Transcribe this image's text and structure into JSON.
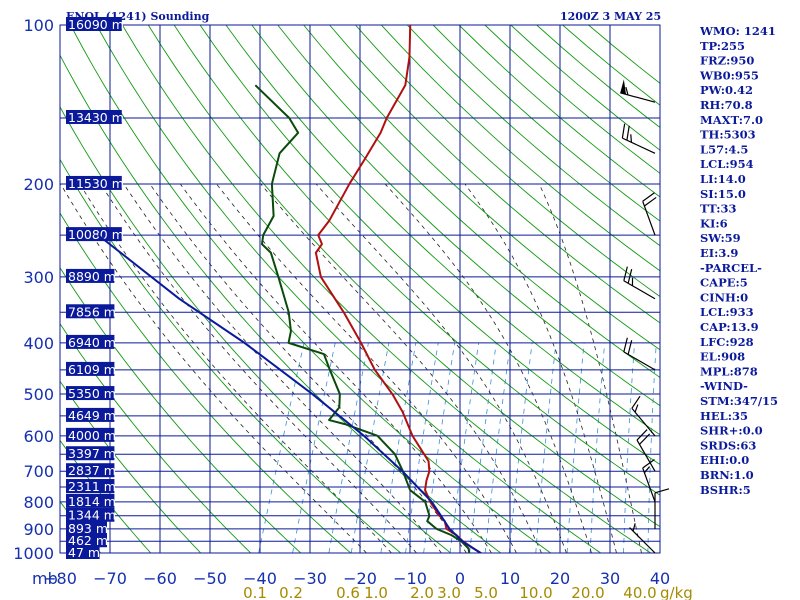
{
  "header": {
    "station_title": "ENOL (1241) Sounding",
    "valid_time": "1200Z  3 MAY 25"
  },
  "indices": [
    "WMO: 1241",
    "TP:255",
    "FRZ:950",
    "WB0:955",
    "PW:0.42",
    "RH:70.8",
    "MAXT:7.0",
    "TH:5303",
    "L57:4.5",
    "LCL:954",
    "LI:14.0",
    "SI:15.0",
    "TT:33",
    "KI:6",
    "SW:59",
    "EI:3.9",
    "-PARCEL-",
    "CAPE:5",
    "CINH:0",
    "LCL:933",
    "CAP:13.9",
    "LFC:928",
    "EL:908",
    "MPL:878",
    "-WIND-",
    "STM:347/15",
    "HEL:35",
    "SHR+:0.0",
    "SRDS:63",
    "EHI:0.0",
    "BRN:1.0",
    "BSHR:5"
  ],
  "colors": {
    "background": "#ffffff",
    "grid": "#0b1a9a",
    "dry_adiabat": "#139a13",
    "moist_adiabat": "#222222",
    "mixing_ratio": "#3a8fd8",
    "temperature": "#b01010",
    "dewpoint": "#0a4a0a",
    "parcel": "#0b1a9a",
    "labels": "#1530b0",
    "mixing_labels": "#a68a00",
    "wind_barbs": "#000000"
  },
  "chart_data": {
    "type": "skew-t",
    "pressure_unit": "mb",
    "ylim": [
      1000,
      100
    ],
    "xlim": [
      -80,
      0
    ],
    "pressure_ticks": [
      "100",
      "200",
      "300",
      "400",
      "500",
      "600",
      "700",
      "800",
      "900",
      "1000"
    ],
    "temperature_ticks": [
      "−80",
      "−70",
      "−60",
      "−50",
      "−40",
      "−30",
      "−20",
      "−10",
      "0",
      "10",
      "20",
      "30",
      "40"
    ],
    "height_labels": [
      {
        "p": 100,
        "label": "16090 m"
      },
      {
        "p": 150,
        "label": "13430 m"
      },
      {
        "p": 200,
        "label": "11530 m"
      },
      {
        "p": 250,
        "label": "10080 m"
      },
      {
        "p": 300,
        "label": "8890 m"
      },
      {
        "p": 350,
        "label": "7856 m"
      },
      {
        "p": 400,
        "label": "6940 m"
      },
      {
        "p": 450,
        "label": "6109 m"
      },
      {
        "p": 500,
        "label": "5350 m"
      },
      {
        "p": 550,
        "label": "4649 m"
      },
      {
        "p": 600,
        "label": "4000 m"
      },
      {
        "p": 650,
        "label": "3397 m"
      },
      {
        "p": 700,
        "label": "2837 m"
      },
      {
        "p": 750,
        "label": "2311 m"
      },
      {
        "p": 800,
        "label": "1814 m"
      },
      {
        "p": 850,
        "label": "1344 m"
      },
      {
        "p": 900,
        "label": "893 m"
      },
      {
        "p": 950,
        "label": "462 m"
      },
      {
        "p": 1000,
        "label": "47 m"
      }
    ],
    "mixing_ratio_labels": [
      "0.1",
      "0.2",
      "0.6",
      "1.0",
      "2.0",
      "3.0",
      "5.0",
      "10.0",
      "20.0",
      "40.0"
    ],
    "mixing_ratio_unit": "g/kg",
    "series": [
      {
        "id": "temperature",
        "points": [
          {
            "p": 1005,
            "t": 3.3
          },
          {
            "p": 980,
            "t": 1.0
          },
          {
            "p": 950,
            "t": -1.7
          },
          {
            "p": 925,
            "t": -3.5
          },
          {
            "p": 900,
            "t": -6.0
          },
          {
            "p": 870,
            "t": -7.0
          },
          {
            "p": 850,
            "t": -8.5
          },
          {
            "p": 800,
            "t": -11.5
          },
          {
            "p": 760,
            "t": -13.5
          },
          {
            "p": 730,
            "t": -14.0
          },
          {
            "p": 700,
            "t": -14.2
          },
          {
            "p": 670,
            "t": -15.2
          },
          {
            "p": 600,
            "t": -20.5
          },
          {
            "p": 540,
            "t": -24.5
          },
          {
            "p": 500,
            "t": -28.0
          },
          {
            "p": 450,
            "t": -33.5
          },
          {
            "p": 400,
            "t": -38.5
          },
          {
            "p": 350,
            "t": -44.5
          },
          {
            "p": 300,
            "t": -52.0
          },
          {
            "p": 270,
            "t": -55.0
          },
          {
            "p": 260,
            "t": -54.5
          },
          {
            "p": 250,
            "t": -56.0
          },
          {
            "p": 235,
            "t": -55.0
          },
          {
            "p": 200,
            "t": -54.0
          },
          {
            "p": 180,
            "t": -53.0
          },
          {
            "p": 160,
            "t": -52.0
          },
          {
            "p": 150,
            "t": -52.0
          },
          {
            "p": 130,
            "t": -51.0
          },
          {
            "p": 115,
            "t": -52.5
          },
          {
            "p": 100,
            "t": -55.0
          }
        ]
      },
      {
        "id": "dewpoint",
        "points": [
          {
            "p": 1005,
            "t": 0.7
          },
          {
            "p": 980,
            "t": 0.0
          },
          {
            "p": 950,
            "t": -2.0
          },
          {
            "p": 925,
            "t": -4.5
          },
          {
            "p": 900,
            "t": -8.0
          },
          {
            "p": 870,
            "t": -10.5
          },
          {
            "p": 850,
            "t": -10.5
          },
          {
            "p": 800,
            "t": -12.5
          },
          {
            "p": 760,
            "t": -16.5
          },
          {
            "p": 700,
            "t": -19.5
          },
          {
            "p": 650,
            "t": -22.5
          },
          {
            "p": 600,
            "t": -27.5
          },
          {
            "p": 570,
            "t": -35.0
          },
          {
            "p": 560,
            "t": -38.5
          },
          {
            "p": 530,
            "t": -37.5
          },
          {
            "p": 500,
            "t": -38.5
          },
          {
            "p": 450,
            "t": -42.5
          },
          {
            "p": 420,
            "t": -45.0
          },
          {
            "p": 400,
            "t": -53.0
          },
          {
            "p": 380,
            "t": -53.5
          },
          {
            "p": 350,
            "t": -55.5
          },
          {
            "p": 300,
            "t": -60.5
          },
          {
            "p": 270,
            "t": -64.0
          },
          {
            "p": 260,
            "t": -66.5
          },
          {
            "p": 250,
            "t": -67.0
          },
          {
            "p": 230,
            "t": -66.5
          },
          {
            "p": 200,
            "t": -69.5
          },
          {
            "p": 175,
            "t": -70.5
          },
          {
            "p": 160,
            "t": -68.5
          },
          {
            "p": 150,
            "t": -71.5
          },
          {
            "p": 130,
            "t": -81.0
          }
        ]
      },
      {
        "id": "parcel",
        "points": [
          {
            "p": 1005,
            "t": 3.3
          },
          {
            "p": 955,
            "t": -1.4
          },
          {
            "p": 900,
            "t": -5.4
          },
          {
            "p": 850,
            "t": -8.2
          },
          {
            "p": 800,
            "t": -11.2
          },
          {
            "p": 700,
            "t": -19.6
          },
          {
            "p": 600,
            "t": -30.2
          },
          {
            "p": 500,
            "t": -44.0
          },
          {
            "p": 400,
            "t": -61.8
          },
          {
            "p": 330,
            "t": -78.5
          },
          {
            "p": 250,
            "t": -100.0
          }
        ]
      }
    ],
    "wind_barbs": [
      {
        "p": 140,
        "dir": 285,
        "kt": 55
      },
      {
        "p": 175,
        "dir": 295,
        "kt": 25
      },
      {
        "p": 250,
        "dir": 340,
        "kt": 20
      },
      {
        "p": 330,
        "dir": 300,
        "kt": 25
      },
      {
        "p": 450,
        "dir": 300,
        "kt": 20
      },
      {
        "p": 600,
        "dir": 320,
        "kt": 15
      },
      {
        "p": 700,
        "dir": 330,
        "kt": 20
      },
      {
        "p": 800,
        "dir": 340,
        "kt": 15
      },
      {
        "p": 900,
        "dir": 0,
        "kt": 10
      },
      {
        "p": 1000,
        "dir": 315,
        "kt": 5
      }
    ]
  }
}
